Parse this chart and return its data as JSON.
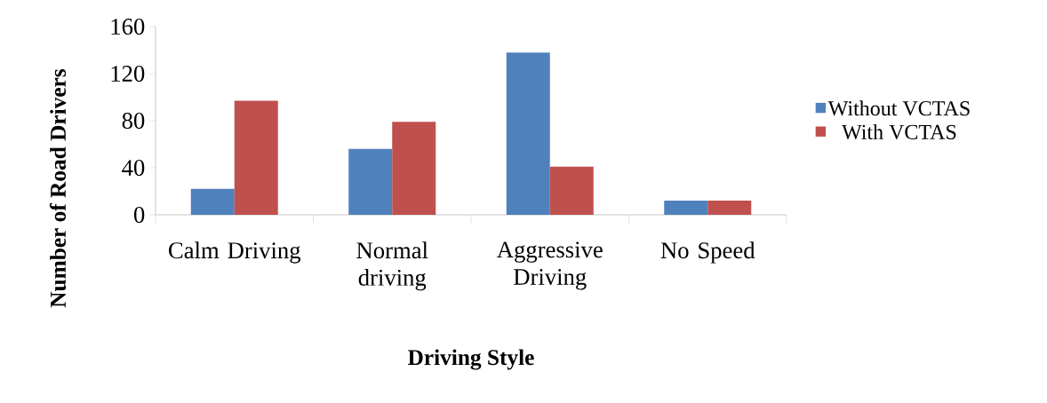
{
  "chart_data": {
    "type": "bar",
    "xlabel": "Driving Style",
    "ylabel": "Number of Road Drivers",
    "categories": [
      "Calm Driving",
      "Normal driving",
      "Aggressive Driving",
      "No Speed"
    ],
    "series": [
      {
        "name": "Without VCTAS",
        "color": "#4f81bd",
        "values": [
          22,
          56,
          138,
          12
        ]
      },
      {
        "name": "With VCTAS",
        "color": "#c0504d",
        "values": [
          97,
          79,
          41,
          12
        ]
      }
    ],
    "ylim": [
      0,
      160
    ],
    "yticks": [
      0,
      40,
      80,
      120,
      160
    ],
    "grid": false,
    "legend": "right"
  }
}
